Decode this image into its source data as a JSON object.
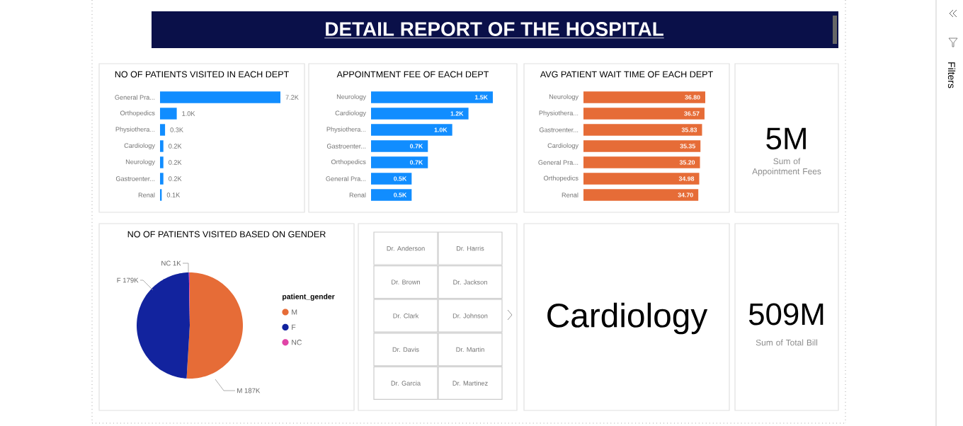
{
  "chart_data": [
    {
      "type": "other",
      "title": "DETAIL REPORT OF THE HOSPITAL"
    },
    {
      "type": "bar",
      "orientation": "horizontal",
      "title": "NO OF PATIENTS VISITED IN EACH DEPT",
      "categories": [
        "General Pra...",
        "Orthopedics",
        "Physiothera...",
        "Cardiology",
        "Neurology",
        "Gastroenter...",
        "Renal"
      ],
      "values": [
        7200,
        1000,
        300,
        200,
        200,
        200,
        100
      ],
      "value_labels": [
        "7.2K",
        "1.0K",
        "0.3K",
        "0.2K",
        "0.2K",
        "0.2K",
        "0.1K"
      ],
      "color": "#118dff"
    },
    {
      "type": "bar",
      "orientation": "horizontal",
      "title": "APPOINTMENT FEE OF EACH DEPT",
      "categories": [
        "Neurology",
        "Cardiology",
        "Physiothera...",
        "Gastroenter...",
        "Orthopedics",
        "General Pra...",
        "Renal"
      ],
      "values": [
        1500,
        1200,
        1000,
        700,
        700,
        500,
        500
      ],
      "value_labels": [
        "1.5K",
        "1.2K",
        "1.0K",
        "0.7K",
        "0.7K",
        "0.5K",
        "0.5K"
      ],
      "color": "#118dff"
    },
    {
      "type": "bar",
      "orientation": "horizontal",
      "title": "AVG PATIENT WAIT TIME OF EACH DEPT",
      "categories": [
        "Neurology",
        "Physiothera...",
        "Gastroenter...",
        "Cardiology",
        "General Pra...",
        "Orthopedics",
        "Renal"
      ],
      "values": [
        36.8,
        36.57,
        35.83,
        35.35,
        35.2,
        34.98,
        34.7
      ],
      "value_labels": [
        "36.80",
        "36.57",
        "35.83",
        "35.35",
        "35.20",
        "34.98",
        "34.70"
      ],
      "color": "#e66c37"
    },
    {
      "type": "other",
      "annotations": [
        "5M",
        "Sum of Appointment Fees"
      ]
    },
    {
      "type": "pie",
      "title": "NO OF PATIENTS VISITED BASED ON GENDER",
      "categories": [
        "M",
        "F",
        "NC"
      ],
      "values": [
        187000,
        179000,
        1000
      ],
      "value_labels": [
        "M 187K",
        "F 179K",
        "NC 1K"
      ],
      "colors": [
        "#e66c37",
        "#12239e",
        "#e044a7"
      ],
      "legend_title": "patient_gender",
      "legend": "right"
    },
    {
      "type": "other",
      "annotations": [
        "Dr. Anderson",
        "Dr. Harris",
        "Dr. Brown",
        "Dr. Jackson",
        "Dr. Clark",
        "Dr. Johnson",
        "Dr. Davis",
        "Dr. Martin",
        "Dr. Garcia",
        "Dr. Martinez"
      ]
    },
    {
      "type": "other",
      "annotations": [
        "Cardiology"
      ]
    },
    {
      "type": "other",
      "annotations": [
        "509M",
        "Sum of Total Bill"
      ]
    },
    {
      "type": "other",
      "annotations": [
        "Filters"
      ]
    }
  ]
}
